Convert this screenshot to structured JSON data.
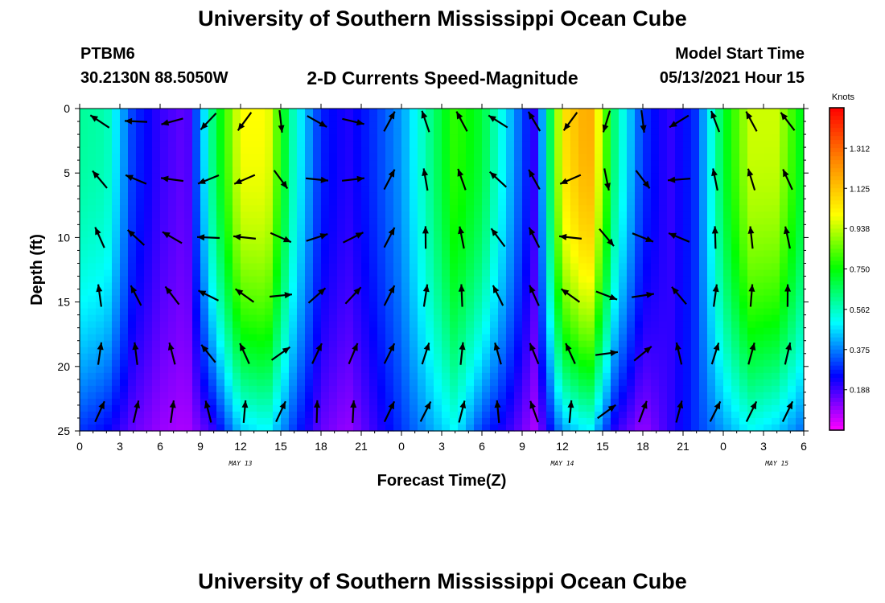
{
  "header": {
    "title": "University of Southern Mississippi Ocean Cube",
    "station": "PTBM6",
    "coordinates": "30.2130N  88.5050W",
    "subtitle": "2-D Currents Speed-Magnitude",
    "model_start_label": "Model Start Time",
    "model_start_time": "05/13/2021 Hour 15"
  },
  "footer": {
    "title": "University of Southern Mississippi Ocean Cube"
  },
  "chart_data": {
    "type": "heatmap",
    "xlabel": "Forecast Time(Z)",
    "ylabel": "Depth (ft)",
    "x_ticks": [
      "0",
      "3",
      "6",
      "9",
      "12",
      "15",
      "18",
      "21",
      "0",
      "3",
      "6",
      "9",
      "12",
      "15",
      "18",
      "21",
      "0",
      "3",
      "6"
    ],
    "x_hours": [
      0,
      54
    ],
    "date_labels": [
      {
        "label": "MAY 13",
        "hour": 12
      },
      {
        "label": "MAY 14",
        "hour": 36
      },
      {
        "label": "MAY 15",
        "hour": 52
      }
    ],
    "y_ticks": [
      0,
      5,
      10,
      15,
      20,
      25
    ],
    "ylim": [
      0,
      25
    ],
    "y_inverted": true,
    "colorbar": {
      "title": "Knots",
      "ticks": [
        "1.312",
        "1.125",
        "0.938",
        "0.750",
        "0.562",
        "0.375",
        "0.188"
      ],
      "tick_values": [
        1.312,
        1.125,
        0.938,
        0.75,
        0.562,
        0.375,
        0.188
      ],
      "range": [
        0,
        1.5
      ],
      "colors": [
        "#ff00ff",
        "#0000ff",
        "#00ffff",
        "#00ff00",
        "#ffff00",
        "#ff8800",
        "#ff0000"
      ]
    },
    "speed_profile_hours": [
      0,
      2,
      4,
      6,
      8,
      10,
      12,
      14,
      16,
      18,
      20,
      22,
      24,
      26,
      28,
      30,
      32,
      34,
      36,
      38,
      40,
      42,
      44,
      46,
      48,
      50,
      52,
      54
    ],
    "speed_profile_surface": [
      0.6,
      0.58,
      0.3,
      0.2,
      0.15,
      0.65,
      1.0,
      1.0,
      0.55,
      0.28,
      0.22,
      0.3,
      0.4,
      0.6,
      0.8,
      0.7,
      0.45,
      0.2,
      1.05,
      1.2,
      0.6,
      0.3,
      0.2,
      0.3,
      0.7,
      0.95,
      0.95,
      0.7
    ],
    "speed_profile_bottom": [
      0.3,
      0.25,
      0.15,
      0.1,
      0.08,
      0.2,
      0.45,
      0.5,
      0.3,
      0.15,
      0.1,
      0.2,
      0.3,
      0.4,
      0.5,
      0.3,
      0.2,
      0.08,
      0.4,
      0.5,
      0.2,
      0.1,
      0.2,
      0.3,
      0.4,
      0.5,
      0.45,
      0.35
    ],
    "vector_direction_surface_deg": [
      300,
      300,
      270,
      250,
      250,
      210,
      210,
      210,
      150,
      120,
      110,
      100,
      330,
      340,
      340,
      300,
      300,
      330,
      210,
      210,
      200,
      180,
      180,
      330,
      340,
      330,
      320,
      320
    ],
    "vector_direction_bottom_deg": [
      30,
      30,
      20,
      20,
      10,
      350,
      15,
      15,
      15,
      350,
      350,
      20,
      30,
      30,
      20,
      10,
      350,
      340,
      15,
      15,
      60,
      10,
      20,
      30,
      30,
      30,
      30,
      30
    ]
  }
}
